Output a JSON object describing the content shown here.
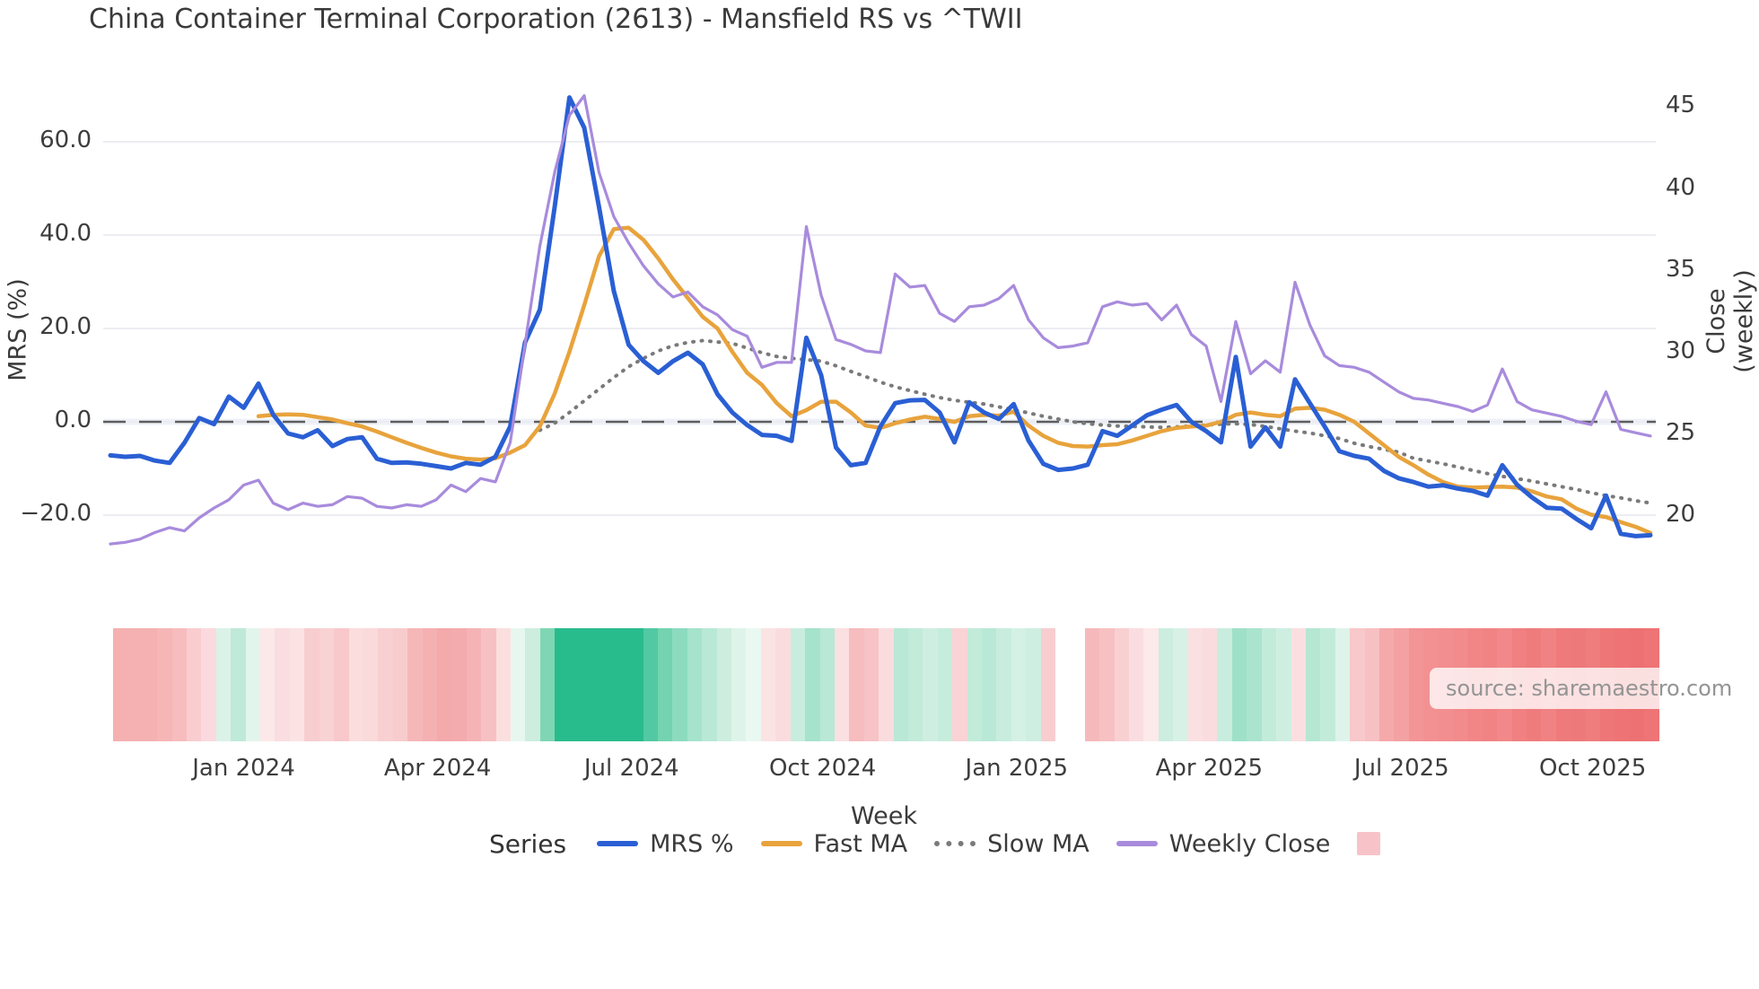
{
  "title": "China Container Terminal Corporation (2613) - Mansfield RS vs ^TWII",
  "source": "source: sharemaestro.com",
  "legend": {
    "title": "Series",
    "items": [
      {
        "label": "MRS %",
        "color": "#2a5fd4",
        "style": "line"
      },
      {
        "label": "Fast MA",
        "color": "#e8a33c",
        "style": "line"
      },
      {
        "label": "Slow MA",
        "color": "#7a7a7a",
        "style": "dotted"
      },
      {
        "label": "Weekly Close",
        "color": "#a88bdc",
        "style": "line"
      },
      {
        "label": "",
        "color": "#f7c3c9",
        "style": "square"
      }
    ]
  },
  "chart_data": {
    "type": "line",
    "title": "China Container Terminal Corporation (2613) - Mansfield RS vs ^TWII",
    "x_axis": {
      "label": "Week",
      "ticks": [
        {
          "label": "Jan 2024",
          "week": 9.0
        },
        {
          "label": "Apr 2024",
          "week": 22.1
        },
        {
          "label": "Jul 2024",
          "week": 35.2
        },
        {
          "label": "Oct 2024",
          "week": 48.1
        },
        {
          "label": "Jan 2025",
          "week": 61.2
        },
        {
          "label": "Apr 2025",
          "week": 74.2
        },
        {
          "label": "Jul 2025",
          "week": 87.2
        },
        {
          "label": "Oct 2025",
          "week": 100.1
        }
      ]
    },
    "y_left": {
      "label": "MRS (%)",
      "range": [
        -29,
        74
      ],
      "ticks": [
        {
          "label": "60.0",
          "value": 60
        },
        {
          "label": "40.0",
          "value": 40
        },
        {
          "label": "20.0",
          "value": 20
        },
        {
          "label": "0.0",
          "value": 0
        },
        {
          "label": "−20.0",
          "value": -20
        }
      ],
      "zero_line": 0
    },
    "y_right": {
      "label": "Close (weekly)",
      "range": [
        18,
        46.5
      ],
      "ticks": [
        {
          "label": "45",
          "value": 45
        },
        {
          "label": "40",
          "value": 40
        },
        {
          "label": "35",
          "value": 35
        },
        {
          "label": "30",
          "value": 30
        },
        {
          "label": "25",
          "value": 25
        },
        {
          "label": "20",
          "value": 20
        }
      ]
    },
    "grid": true,
    "legend_position": "bottom",
    "series": [
      {
        "id": "slow-ma",
        "name": "Slow MA",
        "axis": "left",
        "color": "#7a7a7a",
        "width": 4,
        "dash": "1 8.5",
        "values": [
          null,
          null,
          null,
          null,
          null,
          null,
          null,
          null,
          null,
          null,
          null,
          null,
          null,
          null,
          null,
          null,
          null,
          null,
          null,
          null,
          null,
          null,
          null,
          null,
          null,
          null,
          null,
          null,
          null,
          -1.8,
          -0.3,
          2.0,
          4.5,
          7.0,
          9.5,
          11.8,
          13.6,
          15.2,
          16.3,
          17.0,
          17.4,
          17.1,
          16.8,
          15.8,
          14.8,
          14.0,
          13.6,
          13.3,
          13.0,
          12.0,
          10.8,
          9.7,
          8.5,
          7.5,
          6.7,
          5.9,
          5.2,
          4.6,
          4.2,
          3.8,
          3.2,
          2.6,
          1.9,
          1.2,
          0.6,
          0.0,
          -0.4,
          -0.7,
          -0.9,
          -1.0,
          -1.1,
          -1.2,
          -1.1,
          -0.9,
          -0.7,
          -0.5,
          -0.4,
          -0.6,
          -1.0,
          -1.5,
          -2.0,
          -2.4,
          -3.0,
          -3.6,
          -4.6,
          -5.3,
          -5.9,
          -6.5,
          -7.8,
          -8.4,
          -9.0,
          -9.7,
          -10.4,
          -11.1,
          -11.7,
          -12.2,
          -12.7,
          -13.3,
          -13.9,
          -14.5,
          -15.2,
          -15.8,
          -16.3,
          -16.9,
          -17.4
        ]
      },
      {
        "id": "fast-ma",
        "name": "Fast MA",
        "axis": "left",
        "color": "#e8a33c",
        "width": 4.5,
        "dash": null,
        "values": [
          null,
          null,
          null,
          null,
          null,
          null,
          null,
          null,
          null,
          null,
          1.2,
          1.5,
          1.6,
          1.5,
          1.0,
          0.5,
          -0.3,
          -1.0,
          -2.1,
          -3.3,
          -4.5,
          -5.6,
          -6.6,
          -7.4,
          -7.9,
          -8.1,
          -7.8,
          -6.6,
          -5.0,
          -1.0,
          6.0,
          15.0,
          25.0,
          35.5,
          41.3,
          41.6,
          39.0,
          35.0,
          30.5,
          26.5,
          22.5,
          20.0,
          15.0,
          10.5,
          7.9,
          4.0,
          1.2,
          2.5,
          4.3,
          4.3,
          2.0,
          -0.8,
          -1.3,
          -0.3,
          0.5,
          1.1,
          0.6,
          0.0,
          1.2,
          1.5,
          1.3,
          2.2,
          -0.8,
          -3.0,
          -4.5,
          -5.2,
          -5.3,
          -5.0,
          -4.8,
          -4.0,
          -3.0,
          -2.0,
          -1.3,
          -1.0,
          -0.8,
          0.0,
          1.5,
          2.0,
          1.5,
          1.2,
          2.8,
          3.0,
          2.6,
          1.5,
          0.0,
          -2.5,
          -5.0,
          -7.5,
          -9.3,
          -11.3,
          -12.9,
          -13.9,
          -14.1,
          -14.0,
          -13.9,
          -14.1,
          -14.9,
          -16.0,
          -16.6,
          -18.6,
          -19.9,
          -20.4,
          -21.5,
          -22.5,
          -23.8
        ]
      },
      {
        "id": "mrs",
        "name": "MRS %",
        "axis": "left",
        "color": "#2a5fd4",
        "width": 5,
        "dash": null,
        "values": [
          -7.2,
          -7.5,
          -7.3,
          -8.3,
          -8.8,
          -4.5,
          0.8,
          -0.5,
          5.4,
          3.0,
          8.2,
          1.5,
          -2.5,
          -3.3,
          -1.8,
          -5.2,
          -3.7,
          -3.3,
          -7.9,
          -8.8,
          -8.7,
          -9.0,
          -9.5,
          -10.0,
          -8.8,
          -9.2,
          -7.5,
          -1.0,
          17.0,
          24.0,
          46.0,
          69.5,
          63.0,
          46.0,
          28.0,
          16.5,
          13.0,
          10.5,
          13.0,
          14.8,
          12.3,
          5.9,
          2.0,
          -0.7,
          -2.8,
          -3.0,
          -4.1,
          18.0,
          10.0,
          -5.5,
          -9.3,
          -8.8,
          -1.0,
          4.0,
          4.6,
          4.7,
          2.0,
          -4.4,
          4.2,
          2.0,
          0.6,
          3.8,
          -4.0,
          -9.0,
          -10.3,
          -10.0,
          -9.2,
          -2.0,
          -3.0,
          -0.8,
          1.4,
          2.6,
          3.6,
          0.0,
          -2.0,
          -4.4,
          13.9,
          -5.3,
          -1.2,
          -5.3,
          9.1,
          4.0,
          -1.0,
          -6.3,
          -7.3,
          -7.9,
          -10.5,
          -12.1,
          -12.9,
          -13.9,
          -13.6,
          -14.3,
          -14.8,
          -15.8,
          -9.3,
          -13.5,
          -16.2,
          -18.4,
          -18.6,
          -20.8,
          -22.8,
          -15.8,
          -24.0,
          -24.5,
          -24.3
        ]
      },
      {
        "id": "weekly-close",
        "name": "Weekly Close",
        "axis": "right",
        "color": "#a88bdc",
        "width": 3.2,
        "dash": null,
        "values": [
          18.3,
          18.4,
          18.6,
          19.0,
          19.3,
          19.1,
          19.9,
          20.5,
          21.0,
          21.9,
          22.2,
          20.8,
          20.4,
          20.8,
          20.6,
          20.7,
          21.2,
          21.1,
          20.6,
          20.5,
          20.7,
          20.6,
          21.0,
          21.9,
          21.5,
          22.3,
          22.1,
          24.5,
          30.5,
          36.5,
          41.0,
          44.5,
          45.7,
          41.0,
          38.3,
          36.7,
          35.3,
          34.2,
          33.4,
          33.7,
          32.8,
          32.3,
          31.4,
          31.0,
          29.1,
          29.4,
          29.4,
          37.7,
          33.5,
          30.8,
          30.5,
          30.1,
          30.0,
          34.8,
          34.0,
          34.1,
          32.4,
          31.9,
          32.8,
          32.9,
          33.3,
          34.1,
          32.0,
          30.9,
          30.3,
          30.4,
          30.6,
          32.8,
          33.1,
          32.9,
          33.0,
          32.0,
          32.9,
          31.1,
          30.4,
          27.0,
          31.9,
          28.7,
          29.5,
          28.8,
          34.3,
          31.7,
          29.8,
          29.2,
          29.1,
          28.8,
          28.2,
          27.6,
          27.2,
          27.1,
          26.9,
          26.7,
          26.4,
          26.8,
          29.0,
          27.0,
          26.5,
          26.3,
          26.1,
          25.8,
          25.6,
          27.6,
          25.3,
          25.1,
          24.9
        ]
      }
    ],
    "heat_strip": {
      "description": "weekly RS heat band, red=weak green=strong, white=missing",
      "colors": [
        "#f5b1b1",
        "#f5b1b1",
        "#f5b1b1",
        "#f6b6b6",
        "#f7bcbe",
        "#f9cdd0",
        "#fadade",
        "#daf2e8",
        "#bfe9d9",
        "#e2f5ed",
        "#fce8e8",
        "#fadde0",
        "#fbe3e3",
        "#f8cdd0",
        "#f9d2d4",
        "#f8c8cb",
        "#fbdddd",
        "#fadada",
        "#f9d0d2",
        "#f8cccc",
        "#f6b7b9",
        "#f5b0b2",
        "#f4a9ab",
        "#f4abad",
        "#f5b3b5",
        "#f7c0c2",
        "#fbdfdf",
        "#e7f7f0",
        "#cdeede",
        "#7fd6b4",
        "#28bc8d",
        "#28bc8d",
        "#28bc8d",
        "#28bc8d",
        "#28bc8d",
        "#28bc8d",
        "#52c9a2",
        "#74d3b1",
        "#8cdbbf",
        "#a5e3cc",
        "#b9e8d6",
        "#cdeede",
        "#def4ea",
        "#eaf8f2",
        "#fbe3e4",
        "#fadcde",
        "#c8edde",
        "#a5e3cc",
        "#b9e8d6",
        "#fbe0e2",
        "#f6bcbe",
        "#f7c3c5",
        "#fadcde",
        "#b9e8d6",
        "#c2ebd9",
        "#cfeee2",
        "#c6ecdc",
        "#f9d3d5",
        "#c2ebd9",
        "#b9e8d6",
        "#c8edde",
        "#d5f1e6",
        "#cfeee2",
        "#f8cdd0",
        "#ffffff",
        "#ffffff",
        "#f6b9bb",
        "#f7c0c2",
        "#f9d0d2",
        "#fadde0",
        "#fce9e9",
        "#cceddf",
        "#d8f1e7",
        "#fbe0e1",
        "#fadcde",
        "#c8edde",
        "#9fe1c8",
        "#aae4cf",
        "#c2ebd9",
        "#cfeee2",
        "#fbdfe0",
        "#b5e7d3",
        "#c2ebd9",
        "#def4eb",
        "#f8c8ca",
        "#f7c0c2",
        "#f5a9ab",
        "#f4a1a3",
        "#f39496",
        "#f39092",
        "#f38e90",
        "#f28b8c",
        "#f28687",
        "#f18384",
        "#f28889",
        "#f08081",
        "#ef7c7d",
        "#f08283",
        "#ef7a7b",
        "#ee797a",
        "#ef7d7e",
        "#ee7677",
        "#ee7374",
        "#ed7172",
        "#ee7475"
      ]
    },
    "colors": {
      "grid": "#ececf2",
      "zero_dash": "#5d5d5d",
      "zero_band": "#eef1f7",
      "heat_green_strong": "#28bc8d",
      "heat_red_strong": "#ee7374"
    }
  }
}
